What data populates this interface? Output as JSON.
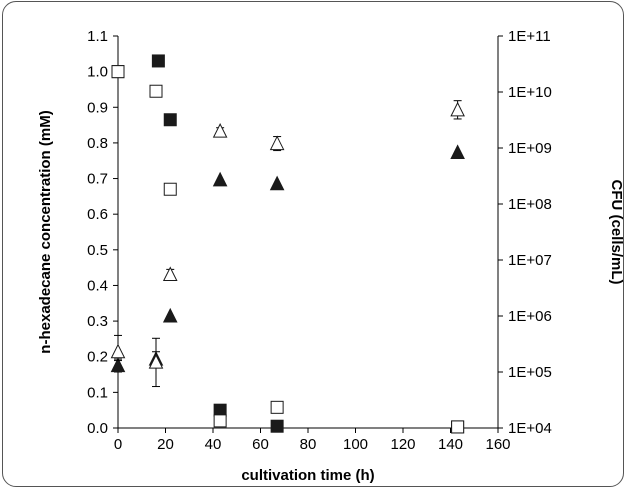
{
  "chart_data": {
    "type": "scatter",
    "title": "",
    "xlabel": "cultivation time (h)",
    "ylabel": "n-hexadecane concentration (mM)",
    "y2label": "CFU (cells/mL)",
    "xlim": [
      0,
      160
    ],
    "ylim": [
      0,
      1.1
    ],
    "y2lim": [
      10000,
      100000000000
    ],
    "y2scale": "log",
    "x_ticks": [
      "0",
      "20",
      "40",
      "60",
      "80",
      "100",
      "120",
      "140",
      "160"
    ],
    "y_ticks": [
      "0.0",
      "0.1",
      "0.2",
      "0.3",
      "0.4",
      "0.5",
      "0.6",
      "0.7",
      "0.8",
      "0.9",
      "1.0",
      "1.1"
    ],
    "y2_ticks": [
      "1E+04",
      "1E+05",
      "1E+06",
      "1E+07",
      "1E+08",
      "1E+09",
      "1E+10",
      "1E+11"
    ],
    "grid": false,
    "legend": "none",
    "series": [
      {
        "marker": "filled-square",
        "axis": "left",
        "color": "#1a1a1a",
        "points": [
          {
            "x": 0,
            "y": 1.0
          },
          {
            "x": 17,
            "y": 1.03
          },
          {
            "x": 22,
            "y": 0.865
          },
          {
            "x": 43,
            "y": 0.05
          },
          {
            "x": 67,
            "y": 0.005
          },
          {
            "x": 143,
            "y": 0.003
          }
        ]
      },
      {
        "marker": "open-square",
        "axis": "left",
        "color": "#1a1a1a",
        "points": [
          {
            "x": 0,
            "y": 1.0
          },
          {
            "x": 16,
            "y": 0.945
          },
          {
            "x": 22,
            "y": 0.67
          },
          {
            "x": 43,
            "y": 0.02
          },
          {
            "x": 67,
            "y": 0.058
          },
          {
            "x": 143,
            "y": 0.003
          }
        ]
      },
      {
        "marker": "filled-triangle",
        "axis": "right",
        "color": "#1a1a1a",
        "points": [
          {
            "x": 0,
            "y": 130000,
            "err_lo": 100000,
            "err_hi": 170000
          },
          {
            "x": 16,
            "y": 170000,
            "err_lo": 120000,
            "err_hi": 230000
          },
          {
            "x": 22,
            "y": 1000000
          },
          {
            "x": 43,
            "y": 270000000
          },
          {
            "x": 67,
            "y": 230000000
          },
          {
            "x": 143,
            "y": 830000000
          }
        ]
      },
      {
        "marker": "open-triangle",
        "axis": "right",
        "color": "#1a1a1a",
        "points": [
          {
            "x": 0,
            "y": 230000,
            "err_lo": 160000,
            "err_hi": 450000
          },
          {
            "x": 16,
            "y": 150000,
            "err_lo": 55000,
            "err_hi": 400000
          },
          {
            "x": 22,
            "y": 5500000,
            "err_lo": 4500000,
            "err_hi": 6800000
          },
          {
            "x": 43,
            "y": 2000000000,
            "err_lo": 1700000000,
            "err_hi": 2300000000
          },
          {
            "x": 67,
            "y": 1200000000,
            "err_lo": 900000000,
            "err_hi": 1600000000
          },
          {
            "x": 143,
            "y": 4800000000,
            "err_lo": 3300000000,
            "err_hi": 7000000000
          }
        ]
      }
    ]
  }
}
